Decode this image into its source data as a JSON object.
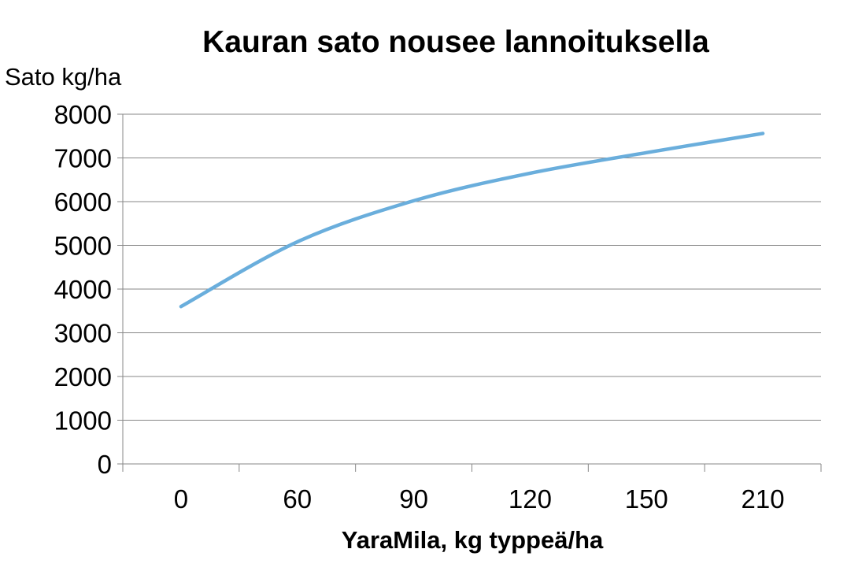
{
  "chart_data": {
    "type": "line",
    "title": "Kauran sato nousee lannoituksella",
    "ylabel": "Sato kg/ha",
    "xlabel": "YaraMila, kg typpeä/ha",
    "categories": [
      "0",
      "60",
      "90",
      "120",
      "150",
      "210"
    ],
    "ylim": [
      0,
      8000
    ],
    "yticks": [
      0,
      1000,
      2000,
      3000,
      4000,
      5000,
      6000,
      7000,
      8000
    ],
    "grid": true,
    "legend": "none",
    "series": [
      {
        "color": "#6aaedc",
        "values": [
          3600,
          5080,
          6020,
          6650,
          7120,
          7560
        ]
      }
    ]
  }
}
